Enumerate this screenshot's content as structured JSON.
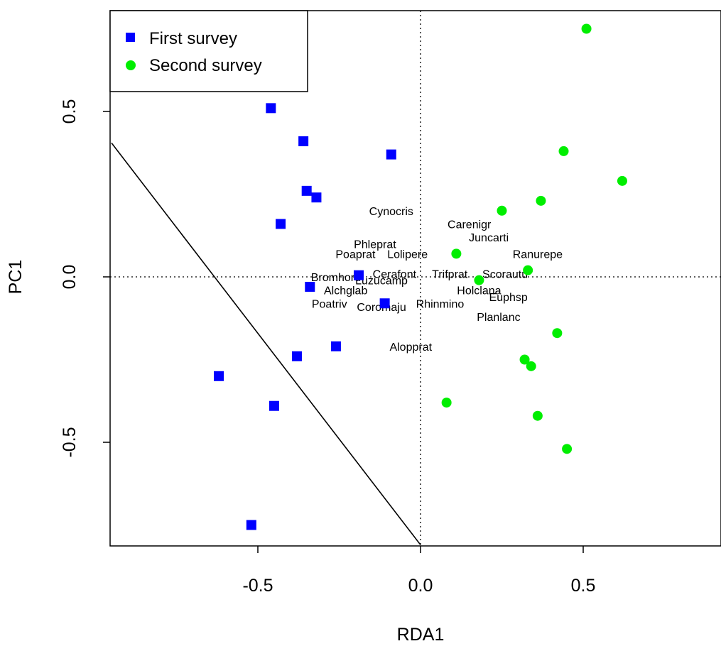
{
  "chart_data": {
    "type": "scatter",
    "title": "",
    "xlabel": "RDA1",
    "ylabel": "PC1",
    "xlim": [
      -0.95,
      0.9
    ],
    "ylim": [
      -0.82,
      0.82
    ],
    "x_ticks": [
      {
        "value": -0.5,
        "label": "-0.5"
      },
      {
        "value": 0.0,
        "label": "0.0"
      },
      {
        "value": 0.5,
        "label": "0.5"
      }
    ],
    "y_ticks": [
      {
        "value": -0.5,
        "label": "-0.5"
      },
      {
        "value": 0.0,
        "label": "0.0"
      },
      {
        "value": 0.5,
        "label": "0.5"
      }
    ],
    "reference_lines": {
      "x": 0,
      "y": 0,
      "style": "dotted"
    },
    "boundary_line": {
      "from": [
        -0.95,
        0.405
      ],
      "to": [
        0.0,
        -0.81
      ]
    },
    "legend": {
      "position": "top-left"
    },
    "series": [
      {
        "name": "First survey",
        "marker": "square",
        "color": "#0000ff",
        "points": [
          {
            "x": -0.46,
            "y": 0.51
          },
          {
            "x": -0.36,
            "y": 0.41
          },
          {
            "x": -0.09,
            "y": 0.37
          },
          {
            "x": -0.35,
            "y": 0.26
          },
          {
            "x": -0.32,
            "y": 0.24
          },
          {
            "x": -0.43,
            "y": 0.16
          },
          {
            "x": -0.19,
            "y": 0.005
          },
          {
            "x": -0.34,
            "y": -0.03
          },
          {
            "x": -0.11,
            "y": -0.08
          },
          {
            "x": -0.26,
            "y": -0.21
          },
          {
            "x": -0.38,
            "y": -0.24
          },
          {
            "x": -0.62,
            "y": -0.3
          },
          {
            "x": -0.45,
            "y": -0.39
          },
          {
            "x": -0.52,
            "y": -0.75
          }
        ]
      },
      {
        "name": "Second survey",
        "marker": "circle",
        "color": "#00ee00",
        "points": [
          {
            "x": 0.51,
            "y": 0.75
          },
          {
            "x": 0.44,
            "y": 0.38
          },
          {
            "x": 0.62,
            "y": 0.29
          },
          {
            "x": 0.37,
            "y": 0.23
          },
          {
            "x": 0.25,
            "y": 0.2
          },
          {
            "x": 0.11,
            "y": 0.07
          },
          {
            "x": 0.33,
            "y": 0.02
          },
          {
            "x": 0.18,
            "y": -0.01
          },
          {
            "x": 0.42,
            "y": -0.17
          },
          {
            "x": 0.32,
            "y": -0.25
          },
          {
            "x": 0.34,
            "y": -0.27
          },
          {
            "x": 0.08,
            "y": -0.38
          },
          {
            "x": 0.36,
            "y": -0.42
          },
          {
            "x": 0.45,
            "y": -0.52
          }
        ]
      }
    ],
    "species_labels": [
      {
        "text": "Cynocris",
        "x": -0.09,
        "y": 0.2
      },
      {
        "text": "Carenigr",
        "x": 0.15,
        "y": 0.16
      },
      {
        "text": "Juncarti",
        "x": 0.21,
        "y": 0.12
      },
      {
        "text": "Phleprat",
        "x": -0.14,
        "y": 0.1
      },
      {
        "text": "Poaprat",
        "x": -0.2,
        "y": 0.07
      },
      {
        "text": "Lolipere",
        "x": -0.04,
        "y": 0.07
      },
      {
        "text": "Ranurepe",
        "x": 0.36,
        "y": 0.07
      },
      {
        "text": "Bromhord",
        "x": -0.26,
        "y": 0.0
      },
      {
        "text": "Cerafont",
        "x": -0.08,
        "y": 0.01
      },
      {
        "text": "Trifprat",
        "x": 0.09,
        "y": 0.01
      },
      {
        "text": "Scorautu",
        "x": 0.26,
        "y": 0.01
      },
      {
        "text": "Luzucamp",
        "x": -0.12,
        "y": -0.01
      },
      {
        "text": "Alchglab",
        "x": -0.23,
        "y": -0.04
      },
      {
        "text": "Holclana",
        "x": 0.18,
        "y": -0.04
      },
      {
        "text": "Euphsp",
        "x": 0.27,
        "y": -0.06
      },
      {
        "text": "Rhinmino",
        "x": 0.06,
        "y": -0.08
      },
      {
        "text": "Poatriv",
        "x": -0.28,
        "y": -0.08
      },
      {
        "text": "Coromaju",
        "x": -0.12,
        "y": -0.09
      },
      {
        "text": "Planlanc",
        "x": 0.24,
        "y": -0.12
      },
      {
        "text": "Alopprat",
        "x": -0.03,
        "y": -0.21
      }
    ]
  }
}
